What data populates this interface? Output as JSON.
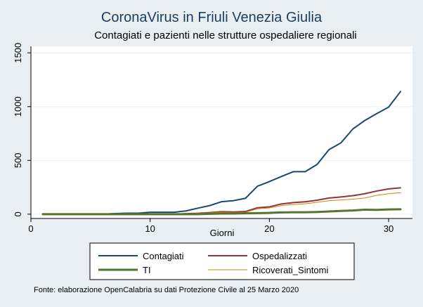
{
  "chart_data": {
    "type": "line",
    "title": "CoronaVirus in Friuli Venezia Giulia",
    "subtitle": "Contagiati e pazienti nelle strutture ospedaliere regionali",
    "xlabel": "Giorni",
    "ylabel": "",
    "xlim": [
      0,
      32
    ],
    "ylim": [
      -40,
      1560
    ],
    "x_ticks": [
      0,
      10,
      20,
      30
    ],
    "x_tick_labels": [
      "0",
      "10",
      "20",
      "30"
    ],
    "y_ticks": [
      0,
      500,
      1000,
      1500
    ],
    "y_tick_labels": [
      "0",
      "500",
      "1000",
      "1500"
    ],
    "grid": "horizontal",
    "legend_position": "bottom",
    "x": [
      1,
      2,
      3,
      4,
      5,
      6,
      7,
      8,
      9,
      10,
      11,
      12,
      13,
      14,
      15,
      16,
      17,
      18,
      19,
      20,
      21,
      22,
      23,
      24,
      25,
      26,
      27,
      28,
      29,
      30,
      31
    ],
    "series": [
      {
        "name": "Contagiati",
        "color": "#1a476f",
        "width": 2,
        "values": [
          0,
          0,
          0,
          0,
          0,
          0,
          6,
          9,
          9,
          18,
          18,
          18,
          30,
          56,
          80,
          116,
          126,
          148,
          260,
          303,
          350,
          395,
          395,
          462,
          600,
          663,
          792,
          871,
          935,
          995,
          1140
        ]
      },
      {
        "name": "Ospedalizzati",
        "color": "#90353b",
        "width": 2,
        "values": [
          0,
          0,
          0,
          0,
          0,
          0,
          0,
          0,
          0,
          0,
          0,
          0,
          5,
          8,
          15,
          24,
          20,
          25,
          60,
          68,
          95,
          108,
          115,
          130,
          150,
          160,
          172,
          190,
          215,
          235,
          245
        ]
      },
      {
        "name": "TI",
        "color": "#55752f",
        "width": 3,
        "values": [
          0,
          0,
          0,
          0,
          0,
          0,
          0,
          0,
          0,
          0,
          0,
          0,
          0,
          0,
          3,
          6,
          6,
          8,
          10,
          12,
          16,
          18,
          18,
          20,
          25,
          30,
          34,
          42,
          40,
          44,
          46
        ]
      },
      {
        "name": "Ricoverati_Sintomi",
        "color": "#e37e00",
        "width": 1,
        "values": [
          0,
          0,
          0,
          0,
          0,
          0,
          0,
          0,
          0,
          0,
          0,
          0,
          4,
          7,
          12,
          19,
          15,
          18,
          50,
          58,
          80,
          90,
          96,
          110,
          125,
          132,
          140,
          150,
          175,
          190,
          200
        ]
      }
    ]
  },
  "footer": "Fonte: elaborazione OpenCalabria su dati Protezione Civile al 25 Marzo 2020"
}
